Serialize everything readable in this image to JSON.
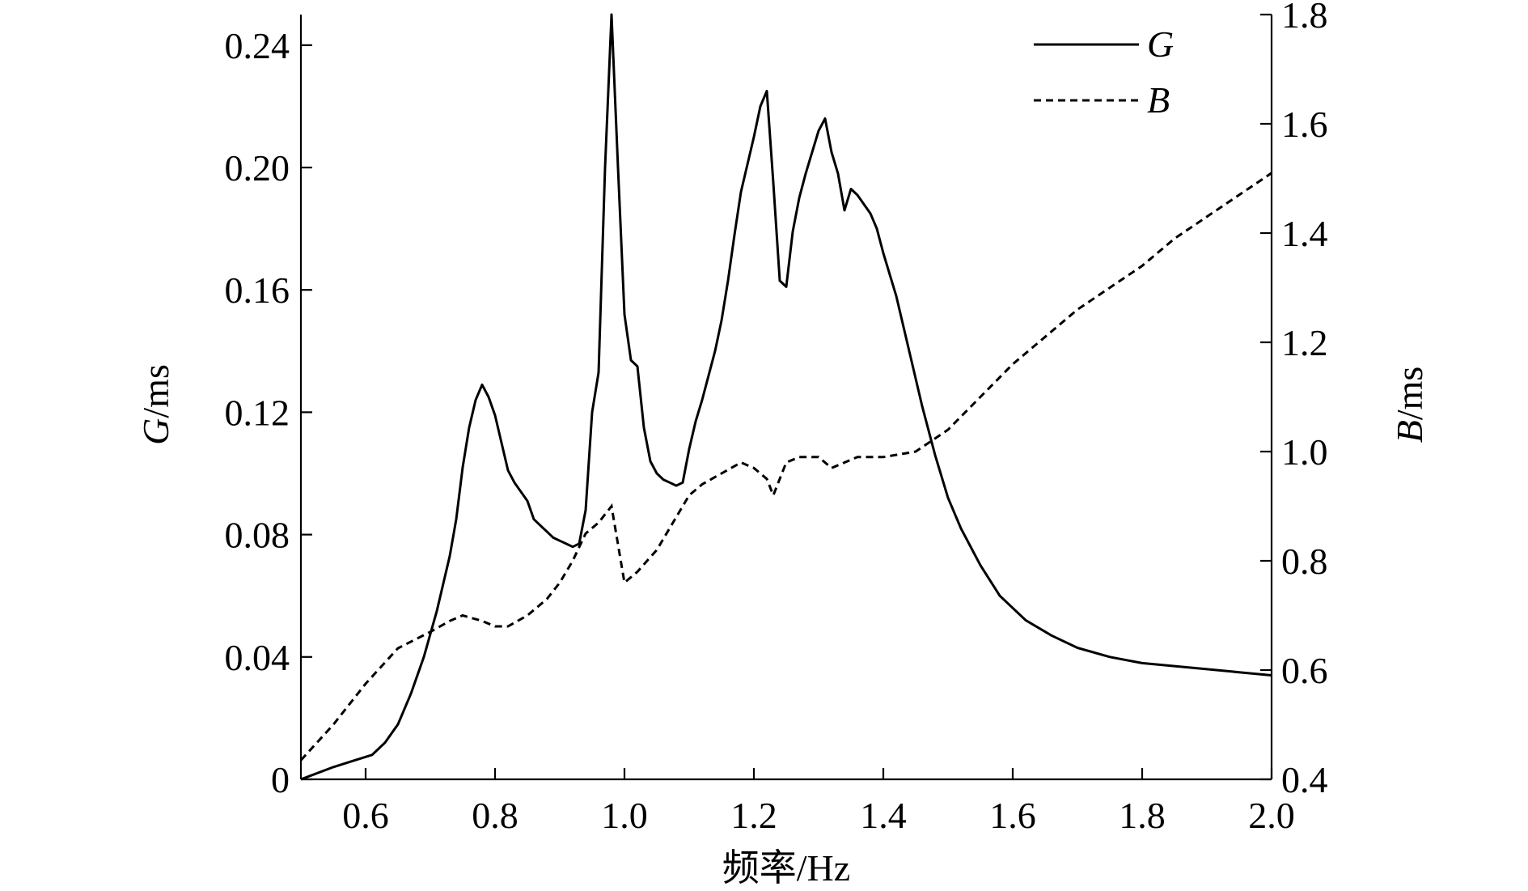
{
  "chart_data": {
    "type": "line",
    "title": "",
    "xlabel": "频率/Hz",
    "ylabel_left": {
      "italic": "G",
      "rest": "/ms"
    },
    "ylabel_right": {
      "italic": "B",
      "rest": "/ms"
    },
    "xlim": [
      0.5,
      2.0
    ],
    "ylim_left": [
      0,
      0.25
    ],
    "ylim_right": [
      0.4,
      1.8
    ],
    "x_ticks": [
      0.6,
      0.8,
      1.0,
      1.2,
      1.4,
      1.6,
      1.8,
      2.0
    ],
    "x_tick_labels": [
      "0.6",
      "0.8",
      "1.0",
      "1.2",
      "1.4",
      "1.6",
      "1.8",
      "2.0"
    ],
    "y_left_ticks": [
      0,
      0.04,
      0.08,
      0.12,
      0.16,
      0.2,
      0.24
    ],
    "y_left_tick_labels": [
      "0",
      "0.04",
      "0.08",
      "0.12",
      "0.16",
      "0.20",
      "0.24"
    ],
    "y_right_ticks": [
      0.4,
      0.6,
      0.8,
      1.0,
      1.2,
      1.4,
      1.6,
      1.8
    ],
    "y_right_tick_labels": [
      "0.4",
      "0.6",
      "0.8",
      "1.0",
      "1.2",
      "1.4",
      "1.6",
      "1.8"
    ],
    "grid": false,
    "legend_position": "top-right",
    "series": [
      {
        "name": "G",
        "axis": "left",
        "style": "solid",
        "points": [
          [
            0.5,
            0.0
          ],
          [
            0.55,
            0.004
          ],
          [
            0.58,
            0.006
          ],
          [
            0.61,
            0.008
          ],
          [
            0.63,
            0.012
          ],
          [
            0.65,
            0.018
          ],
          [
            0.67,
            0.028
          ],
          [
            0.69,
            0.04
          ],
          [
            0.71,
            0.055
          ],
          [
            0.73,
            0.073
          ],
          [
            0.74,
            0.085
          ],
          [
            0.75,
            0.102
          ],
          [
            0.76,
            0.115
          ],
          [
            0.77,
            0.124
          ],
          [
            0.78,
            0.129
          ],
          [
            0.79,
            0.125
          ],
          [
            0.8,
            0.119
          ],
          [
            0.81,
            0.11
          ],
          [
            0.82,
            0.101
          ],
          [
            0.83,
            0.097
          ],
          [
            0.84,
            0.094
          ],
          [
            0.85,
            0.091
          ],
          [
            0.86,
            0.085
          ],
          [
            0.87,
            0.083
          ],
          [
            0.88,
            0.081
          ],
          [
            0.89,
            0.079
          ],
          [
            0.9,
            0.078
          ],
          [
            0.91,
            0.077
          ],
          [
            0.92,
            0.076
          ],
          [
            0.93,
            0.077
          ],
          [
            0.94,
            0.088
          ],
          [
            0.95,
            0.12
          ],
          [
            0.96,
            0.133
          ],
          [
            0.97,
            0.2
          ],
          [
            0.98,
            0.25
          ],
          [
            0.99,
            0.2
          ],
          [
            1.0,
            0.152
          ],
          [
            1.01,
            0.137
          ],
          [
            1.02,
            0.135
          ],
          [
            1.03,
            0.115
          ],
          [
            1.04,
            0.104
          ],
          [
            1.05,
            0.1
          ],
          [
            1.06,
            0.098
          ],
          [
            1.07,
            0.097
          ],
          [
            1.08,
            0.096
          ],
          [
            1.09,
            0.097
          ],
          [
            1.1,
            0.108
          ],
          [
            1.11,
            0.117
          ],
          [
            1.12,
            0.124
          ],
          [
            1.13,
            0.132
          ],
          [
            1.14,
            0.14
          ],
          [
            1.15,
            0.15
          ],
          [
            1.16,
            0.163
          ],
          [
            1.17,
            0.178
          ],
          [
            1.18,
            0.192
          ],
          [
            1.19,
            0.201
          ],
          [
            1.2,
            0.21
          ],
          [
            1.21,
            0.22
          ],
          [
            1.22,
            0.225
          ],
          [
            1.23,
            0.195
          ],
          [
            1.24,
            0.163
          ],
          [
            1.25,
            0.161
          ],
          [
            1.26,
            0.179
          ],
          [
            1.27,
            0.19
          ],
          [
            1.28,
            0.198
          ],
          [
            1.29,
            0.205
          ],
          [
            1.3,
            0.212
          ],
          [
            1.31,
            0.216
          ],
          [
            1.32,
            0.205
          ],
          [
            1.33,
            0.198
          ],
          [
            1.34,
            0.186
          ],
          [
            1.35,
            0.193
          ],
          [
            1.36,
            0.191
          ],
          [
            1.37,
            0.188
          ],
          [
            1.38,
            0.185
          ],
          [
            1.39,
            0.18
          ],
          [
            1.4,
            0.172
          ],
          [
            1.42,
            0.158
          ],
          [
            1.44,
            0.14
          ],
          [
            1.46,
            0.122
          ],
          [
            1.48,
            0.106
          ],
          [
            1.5,
            0.092
          ],
          [
            1.52,
            0.082
          ],
          [
            1.55,
            0.07
          ],
          [
            1.58,
            0.06
          ],
          [
            1.62,
            0.052
          ],
          [
            1.66,
            0.047
          ],
          [
            1.7,
            0.043
          ],
          [
            1.75,
            0.04
          ],
          [
            1.8,
            0.038
          ],
          [
            1.85,
            0.037
          ],
          [
            1.9,
            0.036
          ],
          [
            1.95,
            0.035
          ],
          [
            2.0,
            0.034
          ]
        ]
      },
      {
        "name": "B",
        "axis": "right",
        "style": "dashed",
        "points": [
          [
            0.5,
            0.435
          ],
          [
            0.55,
            0.5
          ],
          [
            0.6,
            0.575
          ],
          [
            0.65,
            0.64
          ],
          [
            0.7,
            0.67
          ],
          [
            0.73,
            0.69
          ],
          [
            0.75,
            0.7
          ],
          [
            0.78,
            0.69
          ],
          [
            0.8,
            0.68
          ],
          [
            0.82,
            0.68
          ],
          [
            0.85,
            0.7
          ],
          [
            0.88,
            0.73
          ],
          [
            0.9,
            0.76
          ],
          [
            0.92,
            0.8
          ],
          [
            0.94,
            0.85
          ],
          [
            0.96,
            0.87
          ],
          [
            0.97,
            0.885
          ],
          [
            0.98,
            0.9
          ],
          [
            0.99,
            0.83
          ],
          [
            1.0,
            0.76
          ],
          [
            1.02,
            0.78
          ],
          [
            1.05,
            0.82
          ],
          [
            1.08,
            0.88
          ],
          [
            1.1,
            0.92
          ],
          [
            1.12,
            0.94
          ],
          [
            1.15,
            0.96
          ],
          [
            1.18,
            0.98
          ],
          [
            1.2,
            0.97
          ],
          [
            1.22,
            0.95
          ],
          [
            1.23,
            0.92
          ],
          [
            1.25,
            0.98
          ],
          [
            1.27,
            0.99
          ],
          [
            1.3,
            0.99
          ],
          [
            1.32,
            0.97
          ],
          [
            1.34,
            0.98
          ],
          [
            1.36,
            0.99
          ],
          [
            1.4,
            0.99
          ],
          [
            1.45,
            1.0
          ],
          [
            1.5,
            1.04
          ],
          [
            1.55,
            1.1
          ],
          [
            1.6,
            1.16
          ],
          [
            1.65,
            1.21
          ],
          [
            1.7,
            1.26
          ],
          [
            1.75,
            1.3
          ],
          [
            1.8,
            1.34
          ],
          [
            1.85,
            1.39
          ],
          [
            1.9,
            1.43
          ],
          [
            1.95,
            1.47
          ],
          [
            2.0,
            1.51
          ]
        ]
      }
    ]
  }
}
